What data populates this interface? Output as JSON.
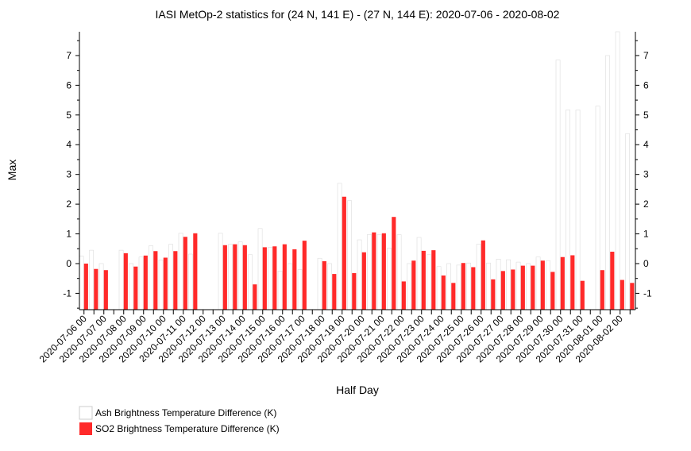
{
  "chart_data": {
    "type": "bar",
    "title": "IASI MetOp-2 statistics for (24 N, 141 E) - (27 N, 144 E): 2020-07-06 - 2020-08-02",
    "xlabel": "Half Day",
    "ylabel": "Max",
    "ylim": [
      -1.55,
      7.8
    ],
    "yticks": [
      "-1",
      "0",
      "1",
      "2",
      "3",
      "4",
      "5",
      "6",
      "7"
    ],
    "grid": false,
    "legend_position": "bottom-left",
    "categories": [
      "2020-07-06 00",
      "2020-07-06 12",
      "2020-07-07 00",
      "2020-07-07 12",
      "2020-07-08 00",
      "2020-07-08 12",
      "2020-07-09 00",
      "2020-07-09 12",
      "2020-07-10 00",
      "2020-07-10 12",
      "2020-07-11 00",
      "2020-07-11 12",
      "2020-07-12 00",
      "2020-07-12 12",
      "2020-07-13 00",
      "2020-07-13 12",
      "2020-07-14 00",
      "2020-07-14 12",
      "2020-07-15 00",
      "2020-07-15 12",
      "2020-07-16 00",
      "2020-07-16 12",
      "2020-07-17 00",
      "2020-07-17 12",
      "2020-07-18 00",
      "2020-07-18 12",
      "2020-07-19 00",
      "2020-07-19 12",
      "2020-07-20 00",
      "2020-07-20 12",
      "2020-07-21 00",
      "2020-07-21 12",
      "2020-07-22 00",
      "2020-07-22 12",
      "2020-07-23 00",
      "2020-07-23 12",
      "2020-07-24 00",
      "2020-07-24 12",
      "2020-07-25 00",
      "2020-07-25 12",
      "2020-07-26 00",
      "2020-07-26 12",
      "2020-07-27 00",
      "2020-07-27 12",
      "2020-07-28 00",
      "2020-07-28 12",
      "2020-07-29 00",
      "2020-07-29 12",
      "2020-07-30 00",
      "2020-07-30 12",
      "2020-07-31 00",
      "2020-07-31 12",
      "2020-08-01 00",
      "2020-08-01 12",
      "2020-08-02 00",
      "2020-08-02 12"
    ],
    "tick_labels": [
      "2020-07-06 00",
      "2020-07-07 00",
      "2020-07-08 00",
      "2020-07-09 00",
      "2020-07-10 00",
      "2020-07-11 00",
      "2020-07-12 00",
      "2020-07-13 00",
      "2020-07-14 00",
      "2020-07-15 00",
      "2020-07-16 00",
      "2020-07-17 00",
      "2020-07-18 00",
      "2020-07-19 00",
      "2020-07-20 00",
      "2020-07-21 00",
      "2020-07-22 00",
      "2020-07-23 00",
      "2020-07-24 00",
      "2020-07-25 00",
      "2020-07-26 00",
      "2020-07-27 00",
      "2020-07-28 00",
      "2020-07-29 00",
      "2020-07-30 00",
      "2020-07-31 00",
      "2020-08-01 00",
      "2020-08-02 00"
    ],
    "series": [
      {
        "name": "Ash Brightness Temperature Difference (K)",
        "color": "#ffffff",
        "values": [
          0.25,
          0.45,
          0.0,
          null,
          0.45,
          0.0,
          0.22,
          0.6,
          0.12,
          0.65,
          1.02,
          0.32,
          null,
          null,
          1.02,
          0.65,
          0.73,
          0.3,
          1.18,
          0.55,
          -0.25,
          0.0,
          -0.2,
          null,
          0.18,
          0.0,
          2.7,
          2.12,
          0.8,
          0.98,
          0.98,
          0.52,
          0.97,
          0.0,
          0.88,
          0.3,
          -0.1,
          0.0,
          -0.05,
          0.02,
          0.65,
          0.02,
          0.15,
          0.13,
          0.05,
          0.0,
          0.22,
          0.1,
          6.85,
          5.17,
          5.17,
          null,
          5.3,
          7.0,
          7.8,
          4.37
        ]
      },
      {
        "name": "SO2 Brightness Temperature Difference (K)",
        "color": "#ff2a2a",
        "values": [
          0.0,
          -0.18,
          -0.22,
          null,
          0.35,
          -0.1,
          0.27,
          0.42,
          0.2,
          0.42,
          0.9,
          1.02,
          null,
          null,
          0.62,
          0.65,
          0.62,
          -0.7,
          0.55,
          0.58,
          0.65,
          0.48,
          0.77,
          null,
          0.08,
          -0.35,
          2.25,
          -0.32,
          0.38,
          1.05,
          1.02,
          1.57,
          -0.6,
          0.1,
          0.43,
          0.45,
          -0.4,
          -0.65,
          0.02,
          -0.12,
          0.78,
          -0.53,
          -0.25,
          -0.2,
          -0.07,
          -0.07,
          0.1,
          -0.28,
          0.22,
          0.28,
          -0.58,
          null,
          -0.22,
          0.4,
          -0.55,
          -0.65
        ]
      }
    ]
  }
}
